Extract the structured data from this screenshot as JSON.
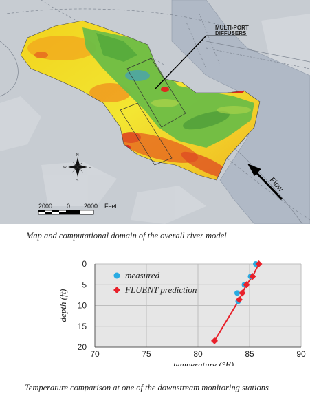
{
  "map": {
    "annotation_line1": "MULTI-PORT",
    "annotation_line2": "DIFFUSERS",
    "flow_label": "Flow",
    "scale_labels": [
      "2000",
      "0",
      "2000"
    ],
    "scale_unit": "Feet",
    "compass_n": "N",
    "compass_s": "S",
    "compass_e": "E",
    "compass_w": "W",
    "colors": {
      "background": "#c7ccd2",
      "river": "#b0b9c6",
      "domain_yellow": "#f3e01f",
      "domain_orange": "#f2a31c",
      "domain_red": "#dd4a23",
      "domain_green": "#6dbd46"
    }
  },
  "captions": {
    "map": "Map and computational domain of the overall river model",
    "chart": "Temperature comparison at one of the downstream monitoring stations"
  },
  "chart_data": {
    "type": "scatter",
    "xlabel": "temperature (°F)",
    "ylabel": "depth (ft)",
    "xlim": [
      70,
      90
    ],
    "ylim": [
      0,
      20
    ],
    "y_inverted": true,
    "x_ticks": [
      "70",
      "75",
      "80",
      "85",
      "90"
    ],
    "y_ticks": [
      "0",
      "5",
      "10",
      "15",
      "20"
    ],
    "grid": true,
    "legend_position": "top-left",
    "series": [
      {
        "name": "measured",
        "marker": "circle",
        "color": "#29abe2",
        "x": [
          85.6,
          85.1,
          84.5,
          83.8,
          83.9
        ],
        "y": [
          0,
          3,
          5,
          7,
          9
        ]
      },
      {
        "name": "FLUENT prediction",
        "marker": "diamond",
        "color": "#e8202a",
        "line": true,
        "x": [
          85.9,
          85.3,
          84.7,
          84.3,
          84.0,
          81.6
        ],
        "y": [
          0,
          3,
          5,
          7,
          8.6,
          18.5
        ]
      }
    ]
  }
}
